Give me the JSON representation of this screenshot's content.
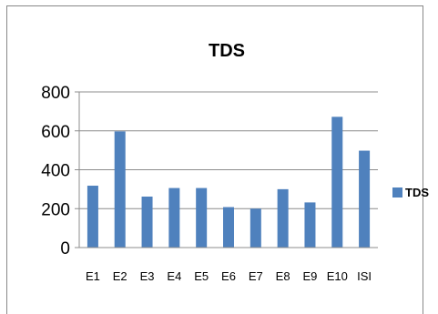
{
  "chart_data": {
    "type": "bar",
    "title": "TDS",
    "categories": [
      "E1",
      "E2",
      "E3",
      "E4",
      "E5",
      "E6",
      "E7",
      "E8",
      "E9",
      "E10",
      "ISI"
    ],
    "series": [
      {
        "name": "TDS",
        "values": [
          318,
          597,
          262,
          306,
          306,
          208,
          200,
          300,
          232,
          672,
          498
        ],
        "color": "#4f81bd"
      }
    ],
    "ylim": [
      0,
      800
    ],
    "yticks": [
      0,
      200,
      400,
      600,
      800
    ],
    "grid": true,
    "legend": "right"
  }
}
